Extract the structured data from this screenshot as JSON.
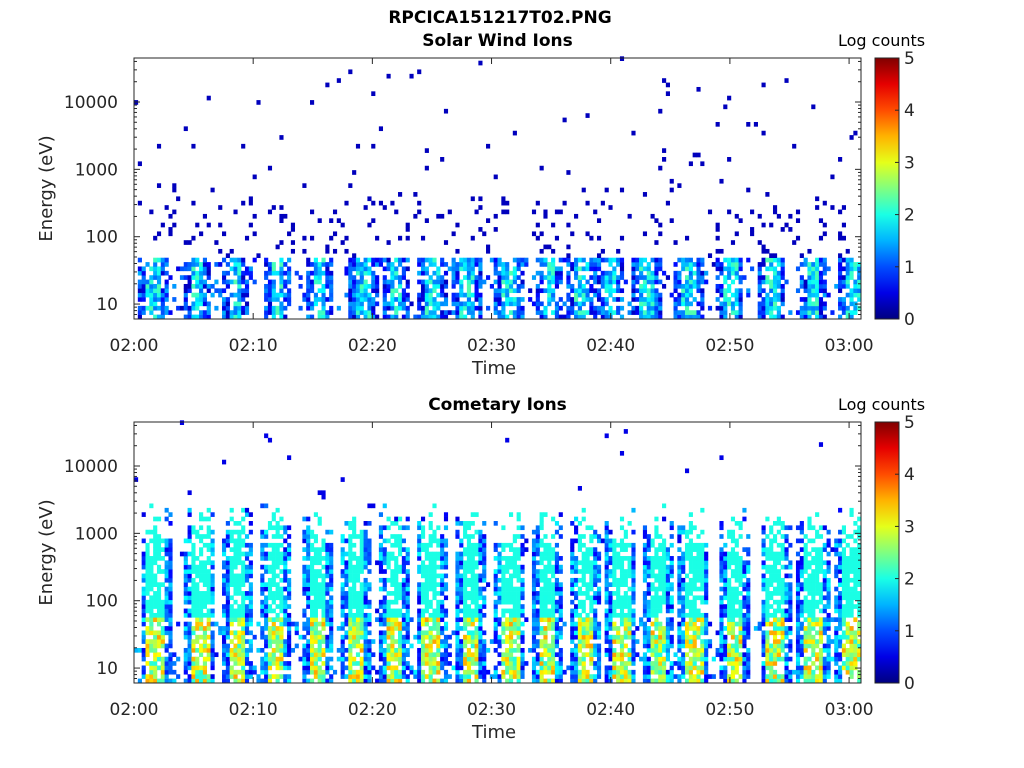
{
  "figure": {
    "title": "RPCICA151217T02.PNG"
  },
  "chart_data": [
    {
      "type": "heatmap",
      "title": "Solar Wind Ions",
      "xlabel": "Time",
      "ylabel": "Energy (eV)",
      "x_ticks": [
        "02:00",
        "02:10",
        "02:20",
        "02:30",
        "02:40",
        "02:50",
        "03:00"
      ],
      "x_range": [
        "02:00",
        "03:01"
      ],
      "y_scale": "log",
      "y_ticks": [
        10,
        100,
        1000,
        10000
      ],
      "y_range": [
        6,
        45000
      ],
      "colorbar": {
        "label": "Log counts",
        "range": [
          0,
          5
        ],
        "ticks": [
          0,
          1,
          2,
          3,
          4,
          5
        ],
        "colormap": "jet"
      },
      "bursts_minutes": [
        1.6,
        5.3,
        8.5,
        12.0,
        15.6,
        19.3,
        22.0,
        25.0,
        28.0,
        31.5,
        34.8,
        37.5,
        40.0,
        43.0,
        46.5,
        50.0,
        53.5,
        57.0,
        60.3
      ],
      "description_values": {
        "background_log_counts": 0.3,
        "low_energy_peak_log_counts": 2.3
      }
    },
    {
      "type": "heatmap",
      "title": "Cometary Ions",
      "xlabel": "Time",
      "ylabel": "Energy (eV)",
      "x_ticks": [
        "02:00",
        "02:10",
        "02:20",
        "02:30",
        "02:40",
        "02:50",
        "03:00"
      ],
      "x_range": [
        "02:00",
        "03:01"
      ],
      "y_scale": "log",
      "y_ticks": [
        10,
        100,
        1000,
        10000
      ],
      "y_range": [
        6,
        45000
      ],
      "colorbar": {
        "label": "Log counts",
        "range": [
          0,
          5
        ],
        "ticks": [
          0,
          1,
          2,
          3,
          4,
          5
        ],
        "colormap": "jet"
      },
      "bursts_minutes": [
        1.8,
        5.6,
        8.6,
        11.8,
        15.4,
        18.6,
        21.9,
        24.9,
        28.3,
        31.6,
        34.6,
        37.8,
        40.9,
        44.0,
        47.0,
        50.4,
        53.8,
        57.0,
        60.2
      ],
      "description_values": {
        "background_log_counts": 0.5,
        "low_energy_peak_log_counts": 3.6
      }
    }
  ]
}
